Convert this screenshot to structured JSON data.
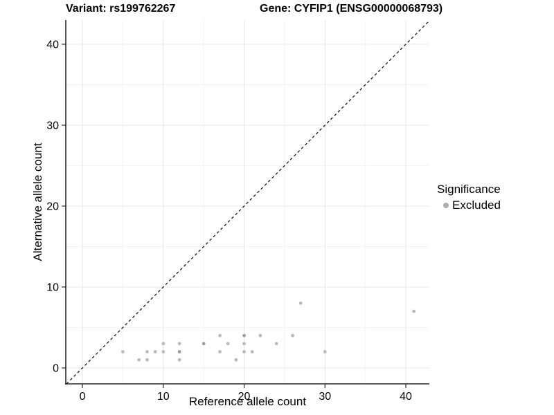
{
  "chart_data": {
    "type": "scatter",
    "title_left": "Variant: rs199762267",
    "title_right": "Gene: CYFIP1 (ENSG00000068793)",
    "xlabel": "Reference allele count",
    "ylabel": "Alternative allele count",
    "xlim": [
      -2.06,
      42.91
    ],
    "ylim": [
      -1.97,
      42.99
    ],
    "x_major_ticks": [
      0,
      10,
      20,
      30,
      40
    ],
    "x_minor_ticks": [
      5,
      15,
      25,
      35
    ],
    "y_major_ticks": [
      0,
      10,
      20,
      30,
      40
    ],
    "y_minor_ticks": [
      5,
      15,
      25,
      35
    ],
    "grid": true,
    "identity_line": {
      "style": "dashed",
      "slope": 1,
      "intercept": 0
    },
    "series": [
      {
        "name": "Excluded",
        "points": [
          {
            "x": 5,
            "y": 2
          },
          {
            "x": 7,
            "y": 1
          },
          {
            "x": 8,
            "y": 1
          },
          {
            "x": 8,
            "y": 2
          },
          {
            "x": 9,
            "y": 2
          },
          {
            "x": 10,
            "y": 2
          },
          {
            "x": 10,
            "y": 3
          },
          {
            "x": 12,
            "y": 1
          },
          {
            "x": 12,
            "y": 2,
            "dark": true
          },
          {
            "x": 12,
            "y": 3
          },
          {
            "x": 15,
            "y": 3,
            "dark": true
          },
          {
            "x": 17,
            "y": 2
          },
          {
            "x": 17,
            "y": 4
          },
          {
            "x": 18,
            "y": 3
          },
          {
            "x": 19,
            "y": 1
          },
          {
            "x": 20,
            "y": 2
          },
          {
            "x": 20,
            "y": 3
          },
          {
            "x": 20,
            "y": 4,
            "dark": true
          },
          {
            "x": 21,
            "y": 2
          },
          {
            "x": 22,
            "y": 4
          },
          {
            "x": 24,
            "y": 3
          },
          {
            "x": 26,
            "y": 4
          },
          {
            "x": 27,
            "y": 8
          },
          {
            "x": 30,
            "y": 2
          },
          {
            "x": 41,
            "y": 7
          }
        ]
      }
    ],
    "legend": {
      "title": "Significance",
      "position": "right",
      "items": [
        {
          "label": "Excluded",
          "color": "#adadad"
        }
      ]
    },
    "colors": {
      "point": "#b9b9b9",
      "point_dark": "#9c9c9c",
      "grid_major": "#e7e7e7",
      "grid_minor": "#f3f3f3",
      "axis": "#2a2a2a",
      "diagonal": "#1a1a1a",
      "background": "#ffffff",
      "text": "#000000"
    }
  }
}
